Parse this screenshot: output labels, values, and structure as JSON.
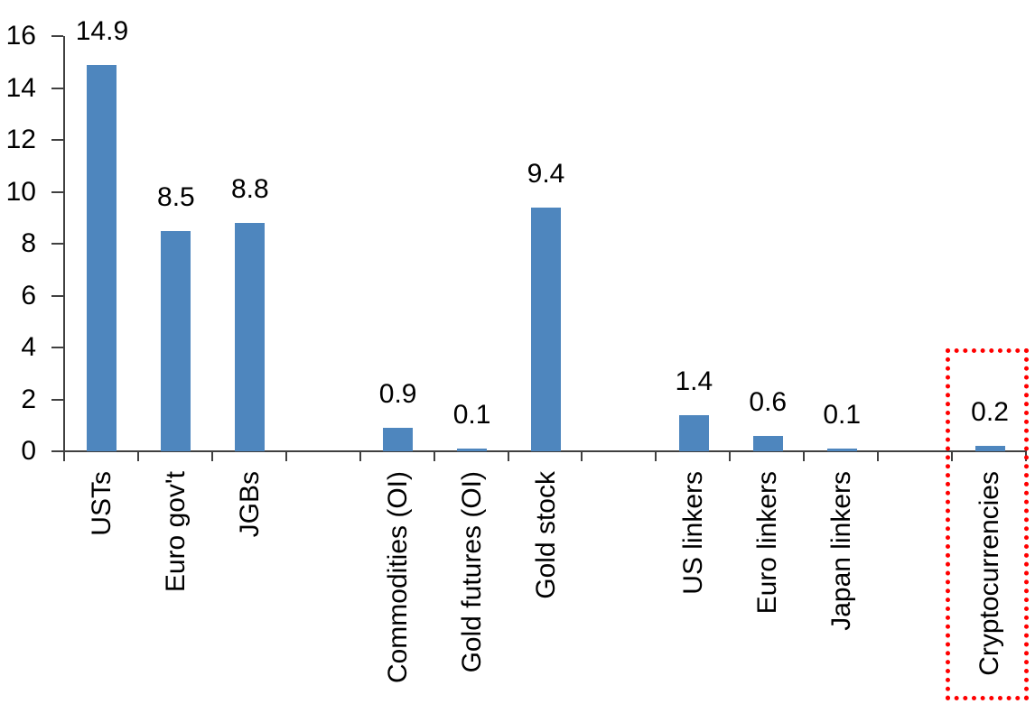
{
  "chart_data": {
    "type": "bar",
    "title": "",
    "categories": [
      "USTs",
      "Euro gov't",
      "JGBs",
      "Commodities (OI)",
      "Gold futures (OI)",
      "Gold stock",
      "US linkers",
      "Euro linkers",
      "Japan linkers",
      "Cryptocurrencies"
    ],
    "values": [
      14.9,
      8.5,
      8.8,
      0.9,
      0.1,
      9.4,
      1.4,
      0.6,
      0.1,
      0.2
    ],
    "data_labels": [
      "14.9",
      "8.5",
      "8.8",
      "0.9",
      "0.1",
      "9.4",
      "1.4",
      "0.6",
      "0.1",
      "0.2"
    ],
    "slots": [
      0,
      1,
      2,
      4,
      5,
      6,
      8,
      9,
      10,
      12
    ],
    "total_slots": 13,
    "xlabel": "",
    "ylabel": "",
    "ylim": [
      0,
      16
    ],
    "y_ticks": [
      0,
      2,
      4,
      6,
      8,
      10,
      12,
      14,
      16
    ],
    "grid": "off",
    "legend": "none",
    "bar_color": "#4E86BE",
    "axis_color": "#404040",
    "text_color": "#000000",
    "highlight": {
      "category": "Cryptocurrencies",
      "shape": "dotted-rectangle",
      "color": "#FF0000"
    }
  }
}
